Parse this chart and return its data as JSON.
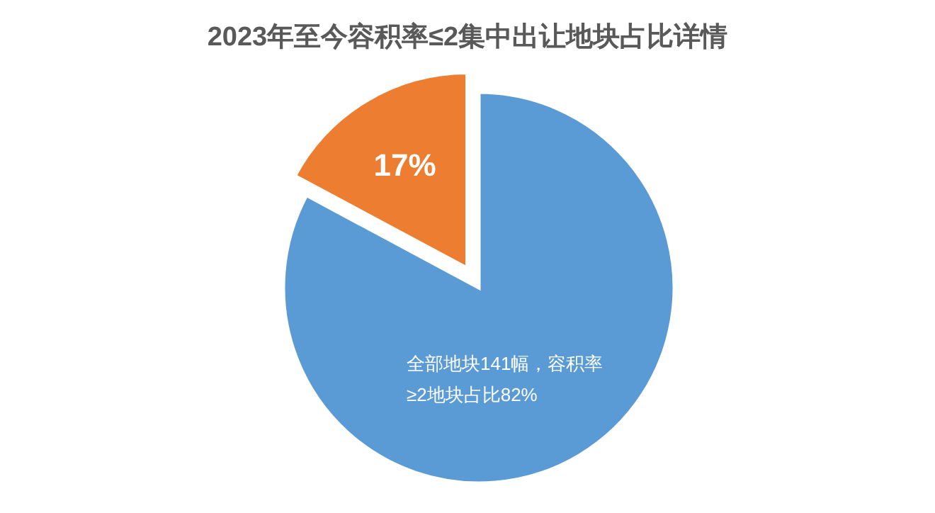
{
  "chart_data": {
    "type": "pie",
    "title": "2023年至今容积率≤2集中出让地块占比详情",
    "categories": [
      null,
      null
    ],
    "values": [
      82,
      17
    ],
    "colors": [
      "#5b9bd5",
      "#ed7d31"
    ],
    "value_labels": [
      "全部地块141幅，容积率≥2地块占比82%",
      "17%"
    ]
  }
}
